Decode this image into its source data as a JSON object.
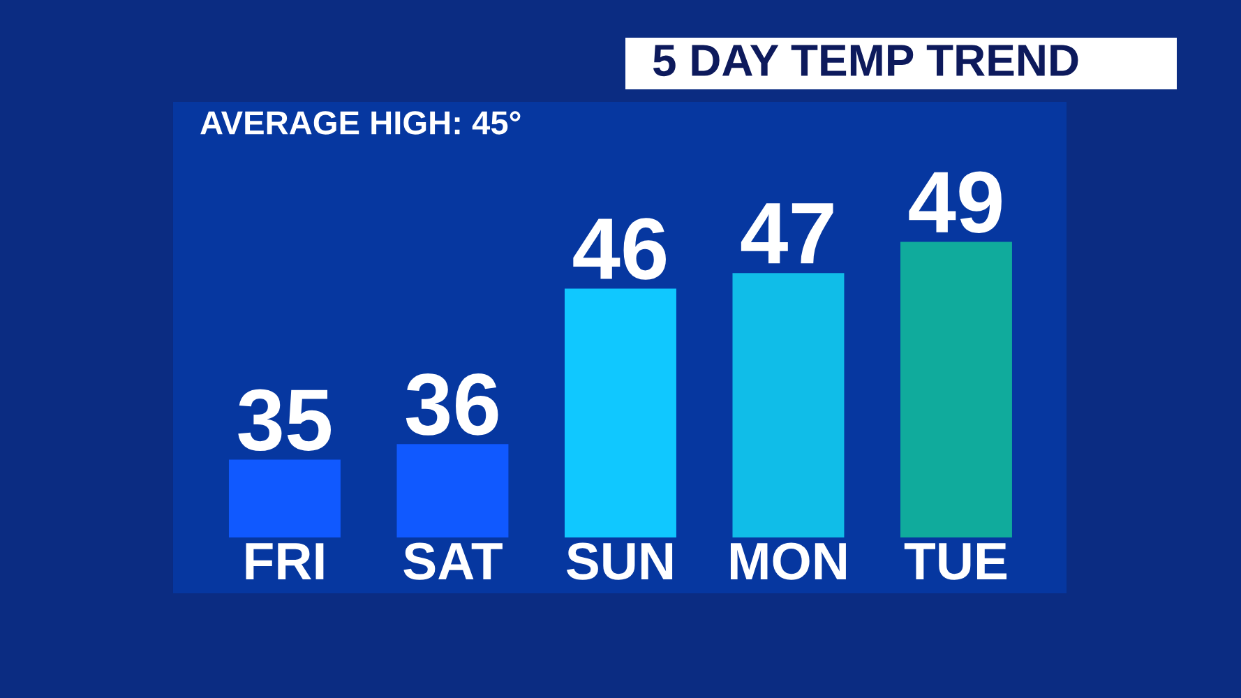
{
  "chart_data": {
    "type": "bar",
    "title": "5 DAY TEMP TREND",
    "annotations": [
      "AVERAGE HIGH: 45°"
    ],
    "categories": [
      "FRI",
      "SAT",
      "SUN",
      "MON",
      "TUE"
    ],
    "values": [
      35,
      36,
      46,
      47,
      49
    ],
    "colors": [
      "#1059ff",
      "#1059ff",
      "#10c8ff",
      "#10bde8",
      "#10ab9c"
    ],
    "ylim": [
      30,
      58
    ],
    "data_labels": true
  }
}
